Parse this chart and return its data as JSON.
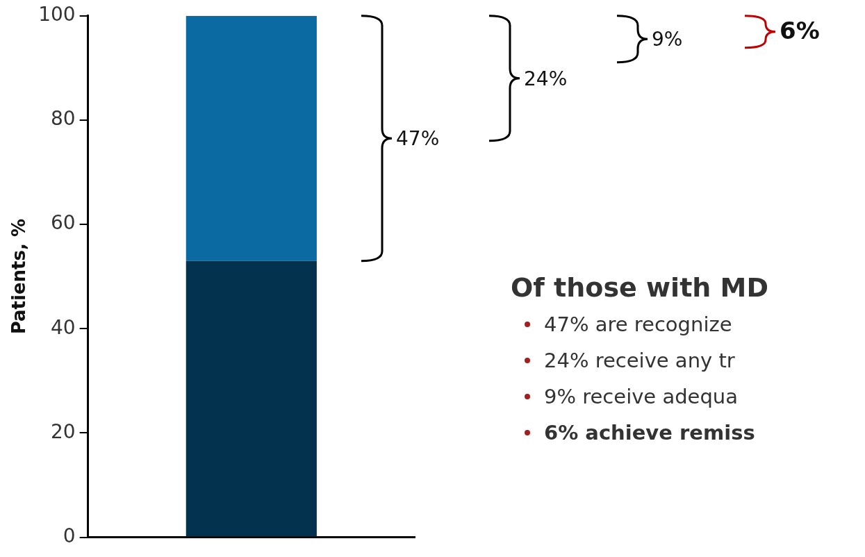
{
  "chart_data": {
    "type": "bar",
    "stacked": true,
    "ylabel": "Patients, %",
    "categories": [
      null
    ],
    "series": [
      {
        "color": "#03324e",
        "values": [
          53
        ]
      },
      {
        "color": "#0b6aa2",
        "values": [
          47
        ]
      }
    ],
    "ylim": [
      0,
      100
    ],
    "yticks": [
      0,
      20,
      40,
      60,
      80,
      100
    ],
    "grid": false,
    "legend": false,
    "annotations": [
      "47%",
      "24%",
      "9%",
      "6%",
      "Of those with MD",
      "47% are recognize",
      "24% receive any tr",
      "9% receive adequa",
      "6% achieve remiss"
    ]
  }
}
